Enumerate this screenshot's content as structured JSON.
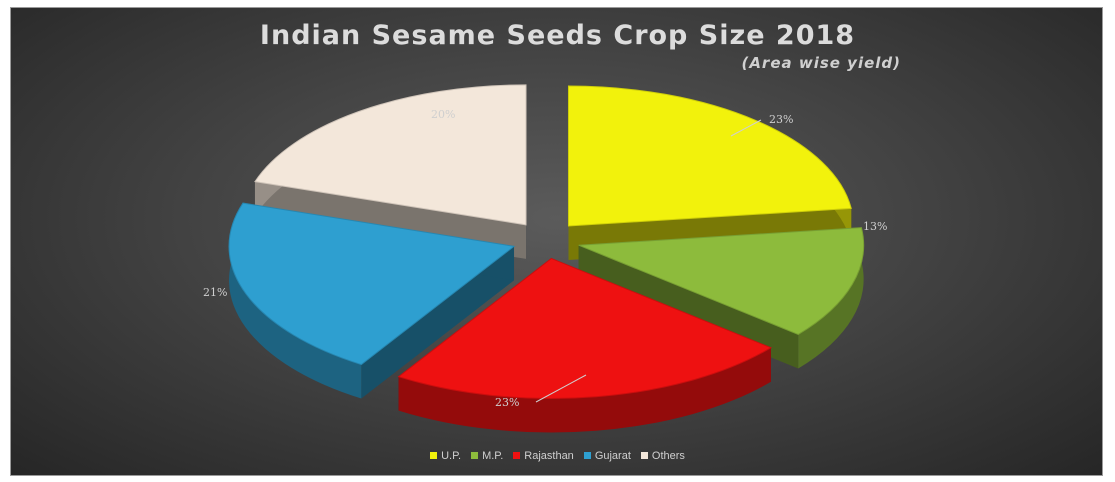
{
  "chart_data": {
    "type": "pie",
    "title": "Indian Sesame Seeds Crop Size 2018",
    "subtitle": "(Area wise yield)",
    "categories": [
      "U.P.",
      "M.P.",
      "Rajasthan",
      "Gujarat",
      "Others"
    ],
    "values": [
      23,
      13,
      23,
      21,
      20
    ],
    "labels": [
      "23%",
      "13%",
      "23%",
      "21%",
      "20%"
    ],
    "colors": [
      "#f2f20c",
      "#8dbb3c",
      "#ee1111",
      "#2e9fd0",
      "#f3e7da"
    ],
    "legend_position": "bottom",
    "style": "3d-exploded"
  }
}
